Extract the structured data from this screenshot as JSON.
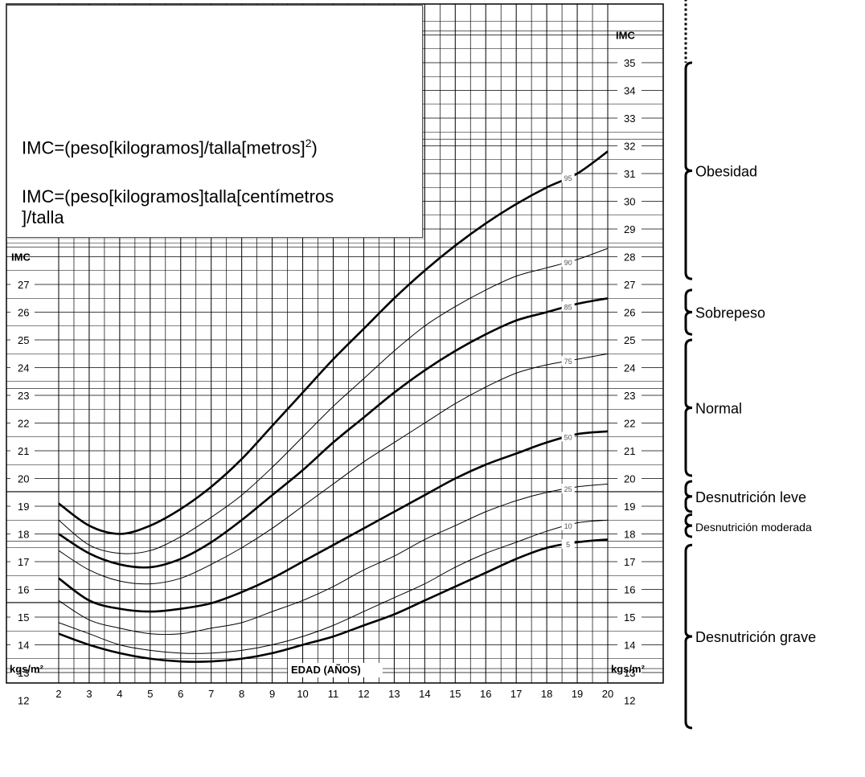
{
  "formula_box": {
    "line1": "IMC=(peso[kilogramos]/talla[metros]",
    "line1_sup": "2",
    "line1_end": ")",
    "line2": "IMC=(peso[kilogramos]talla[centímetros",
    "line3": "]/talla"
  },
  "axis_labels": {
    "imc_left": "IMC",
    "imc_right": "IMC",
    "units_left": "kgs/m²",
    "units_right": "kgs/m²",
    "x_title": "EDAD (AÑOS)"
  },
  "categories": [
    {
      "label": "Obesidad",
      "y_from": 27.2,
      "y_to": 35.0,
      "dotted_to": 38.0
    },
    {
      "label": "Sobrepeso",
      "y_from": 25.2,
      "y_to": 26.8
    },
    {
      "label": "Normal",
      "y_from": 20.1,
      "y_to": 25.0
    },
    {
      "label": "Desnutrición leve",
      "y_from": 18.8,
      "y_to": 19.9
    },
    {
      "label": "Desnutrición moderada",
      "y_from": 17.9,
      "y_to": 18.7,
      "small": true
    },
    {
      "label": "Desnutrición grave",
      "y_from": 11.0,
      "y_to": 17.6
    }
  ],
  "chart_data": {
    "type": "line",
    "xlabel": "EDAD (AÑOS)",
    "ylabel": "IMC",
    "x_ticks": [
      "2",
      "3",
      "4",
      "5",
      "6",
      "7",
      "8",
      "9",
      "10",
      "11",
      "12",
      "13",
      "14",
      "15",
      "16",
      "17",
      "18",
      "19",
      "20"
    ],
    "y_ticks_left": [
      "12",
      "13",
      "14",
      "15",
      "16",
      "17",
      "18",
      "19",
      "20",
      "21",
      "22",
      "23",
      "24",
      "25",
      "26",
      "27"
    ],
    "y_ticks_right": [
      "12",
      "13",
      "14",
      "15",
      "16",
      "17",
      "18",
      "19",
      "20",
      "21",
      "22",
      "23",
      "24",
      "25",
      "26",
      "27",
      "28",
      "29",
      "30",
      "31",
      "32",
      "33",
      "34",
      "35"
    ],
    "xlim": [
      2,
      20
    ],
    "ylim": [
      10.9,
      37.0
    ],
    "x": [
      2,
      3,
      4,
      5,
      6,
      7,
      8,
      9,
      10,
      11,
      12,
      13,
      14,
      15,
      16,
      17,
      18,
      19,
      20
    ],
    "series": [
      {
        "name": "95",
        "bold": true,
        "values": [
          19.1,
          18.3,
          18.0,
          18.3,
          18.9,
          19.7,
          20.7,
          21.9,
          23.1,
          24.3,
          25.4,
          26.5,
          27.5,
          28.4,
          29.2,
          29.9,
          30.5,
          31.0,
          31.8
        ]
      },
      {
        "name": "90",
        "bold": false,
        "values": [
          18.5,
          17.6,
          17.3,
          17.4,
          17.9,
          18.6,
          19.4,
          20.4,
          21.5,
          22.6,
          23.6,
          24.6,
          25.5,
          26.2,
          26.8,
          27.3,
          27.6,
          27.9,
          28.3
        ]
      },
      {
        "name": "85",
        "bold": true,
        "values": [
          18.0,
          17.3,
          16.9,
          16.8,
          17.1,
          17.7,
          18.5,
          19.4,
          20.3,
          21.3,
          22.2,
          23.1,
          23.9,
          24.6,
          25.2,
          25.7,
          26.0,
          26.3,
          26.5
        ]
      },
      {
        "name": "75",
        "bold": false,
        "values": [
          17.4,
          16.7,
          16.3,
          16.2,
          16.4,
          16.9,
          17.5,
          18.2,
          19.0,
          19.8,
          20.6,
          21.3,
          22.0,
          22.7,
          23.3,
          23.8,
          24.1,
          24.3,
          24.5
        ]
      },
      {
        "name": "50",
        "bold": true,
        "values": [
          16.4,
          15.6,
          15.3,
          15.2,
          15.3,
          15.5,
          15.9,
          16.4,
          17.0,
          17.6,
          18.2,
          18.8,
          19.4,
          20.0,
          20.5,
          20.9,
          21.3,
          21.6,
          21.7
        ]
      },
      {
        "name": "25",
        "bold": false,
        "values": [
          15.6,
          14.9,
          14.6,
          14.4,
          14.4,
          14.6,
          14.8,
          15.2,
          15.6,
          16.1,
          16.7,
          17.2,
          17.8,
          18.3,
          18.8,
          19.2,
          19.5,
          19.7,
          19.8
        ]
      },
      {
        "name": "10",
        "bold": false,
        "values": [
          14.8,
          14.4,
          14.0,
          13.8,
          13.7,
          13.7,
          13.8,
          14.0,
          14.3,
          14.7,
          15.2,
          15.7,
          16.2,
          16.8,
          17.3,
          17.7,
          18.1,
          18.4,
          18.5
        ]
      },
      {
        "name": "5",
        "bold": true,
        "values": [
          14.4,
          14.0,
          13.7,
          13.5,
          13.4,
          13.4,
          13.5,
          13.7,
          14.0,
          14.3,
          14.7,
          15.1,
          15.6,
          16.1,
          16.6,
          17.1,
          17.5,
          17.7,
          17.8
        ]
      }
    ],
    "grid": true
  }
}
